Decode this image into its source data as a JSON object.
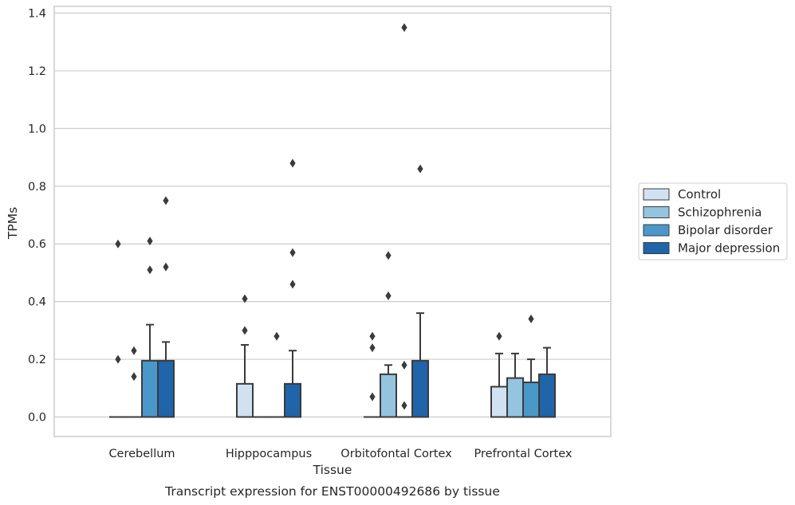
{
  "chart_data": {
    "type": "box",
    "title": "Transcript expression for ENST00000492686 by tissue",
    "xlabel": "Tissue",
    "ylabel": "TPMs",
    "ylim": [
      -0.065,
      1.42
    ],
    "yticks": [
      "0.0",
      "0.2",
      "0.4",
      "0.6",
      "0.8",
      "1.0",
      "1.2",
      "1.4"
    ],
    "grid": "horizontal",
    "legend_position": "outside-right",
    "categories": [
      "Cerebellum",
      "Hipppocampus",
      "Orbitofontal Cortex",
      "Prefrontal Cortex"
    ],
    "series": [
      {
        "name": "Control",
        "color": "#d0e1f2",
        "boxes": [
          {
            "q1": 0,
            "median": 0,
            "q3": 0,
            "whisker_low": 0,
            "whisker_high": 0,
            "outliers": [
              0.6,
              0.2
            ]
          },
          {
            "q1": 0,
            "median": 0,
            "q3": 0.115,
            "whisker_low": 0,
            "whisker_high": 0.25,
            "outliers": [
              0.41,
              0.3
            ]
          },
          {
            "q1": 0,
            "median": 0,
            "q3": 0,
            "whisker_low": 0,
            "whisker_high": 0,
            "outliers": [
              0.28,
              0.24,
              0.07
            ]
          },
          {
            "q1": 0,
            "median": 0,
            "q3": 0.105,
            "whisker_low": 0,
            "whisker_high": 0.22,
            "outliers": [
              0.28
            ]
          }
        ]
      },
      {
        "name": "Schizophrenia",
        "color": "#94c4df",
        "boxes": [
          {
            "q1": 0,
            "median": 0,
            "q3": 0,
            "whisker_low": 0,
            "whisker_high": 0,
            "outliers": [
              0.23,
              0.14
            ]
          },
          {
            "q1": 0,
            "median": 0,
            "q3": 0,
            "whisker_low": 0,
            "whisker_high": 0,
            "outliers": []
          },
          {
            "q1": 0,
            "median": 0,
            "q3": 0.148,
            "whisker_low": 0,
            "whisker_high": 0.18,
            "outliers": [
              0.56,
              0.42
            ]
          },
          {
            "q1": 0,
            "median": 0,
            "q3": 0.135,
            "whisker_low": 0,
            "whisker_high": 0.22,
            "outliers": []
          }
        ]
      },
      {
        "name": "Bipolar disorder",
        "color": "#4a98c9",
        "boxes": [
          {
            "q1": 0,
            "median": 0,
            "q3": 0.195,
            "whisker_low": 0,
            "whisker_high": 0.32,
            "outliers": [
              0.61,
              0.51
            ]
          },
          {
            "q1": 0,
            "median": 0,
            "q3": 0,
            "whisker_low": 0,
            "whisker_high": 0,
            "outliers": [
              0.28
            ]
          },
          {
            "q1": 0,
            "median": 0,
            "q3": 0,
            "whisker_low": 0,
            "whisker_high": 0,
            "outliers": [
              1.35,
              0.18,
              0.04
            ]
          },
          {
            "q1": 0,
            "median": 0,
            "q3": 0.12,
            "whisker_low": 0,
            "whisker_high": 0.2,
            "outliers": [
              0.34
            ]
          }
        ]
      },
      {
        "name": "Major depression",
        "color": "#2064aa",
        "boxes": [
          {
            "q1": 0,
            "median": 0,
            "q3": 0.195,
            "whisker_low": 0,
            "whisker_high": 0.26,
            "outliers": [
              0.75,
              0.52
            ]
          },
          {
            "q1": 0,
            "median": 0,
            "q3": 0.115,
            "whisker_low": 0,
            "whisker_high": 0.23,
            "outliers": [
              0.88,
              0.57,
              0.46
            ]
          },
          {
            "q1": 0,
            "median": 0,
            "q3": 0.195,
            "whisker_low": 0,
            "whisker_high": 0.36,
            "outliers": [
              0.86
            ]
          },
          {
            "q1": 0,
            "median": 0,
            "q3": 0.148,
            "whisker_low": 0,
            "whisker_high": 0.24,
            "outliers": []
          }
        ]
      }
    ]
  },
  "colors": {
    "grid": "#cccccc",
    "axis_frame": "#cccccc",
    "box_edge": "#3b3b3b",
    "outlier": "#3b3b3b"
  }
}
